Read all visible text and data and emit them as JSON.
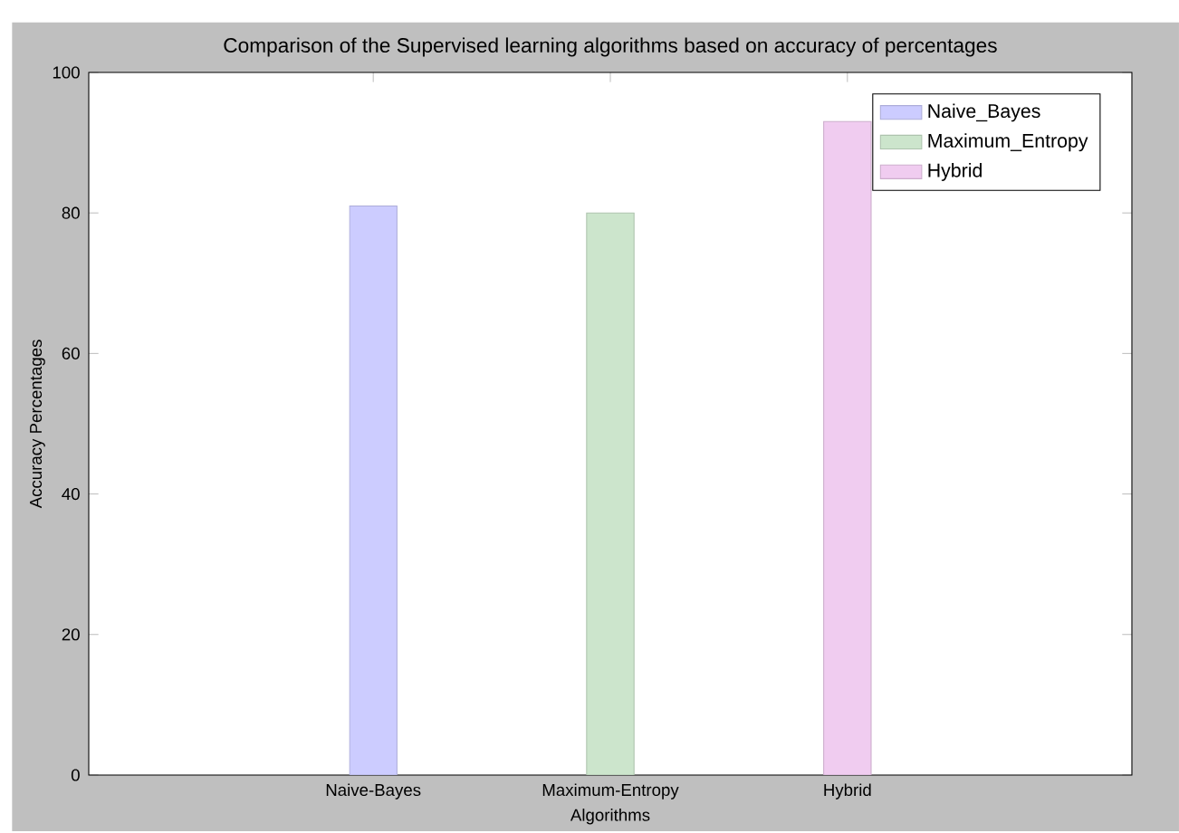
{
  "chart_data": {
    "type": "bar",
    "title": "Comparison of the Supervised learning algorithms based on accuracy of percentages",
    "xlabel": "Algorithms",
    "ylabel": "Accuracy Percentages",
    "categories": [
      "Naive-Bayes",
      "Maximum-Entropy",
      "Hybrid"
    ],
    "series": [
      {
        "name": "Naive_Bayes",
        "color": "#ccccff",
        "values": [
          81,
          null,
          null
        ]
      },
      {
        "name": "Maximum_Entropy",
        "color": "#cce5cc",
        "values": [
          null,
          80,
          null
        ]
      },
      {
        "name": "Hybrid",
        "color": "#f0ccf0",
        "values": [
          null,
          null,
          93
        ]
      }
    ],
    "ylim": [
      0,
      100
    ],
    "yticks": [
      0,
      20,
      40,
      60,
      80,
      100
    ],
    "grid": false,
    "legend": "top right"
  }
}
